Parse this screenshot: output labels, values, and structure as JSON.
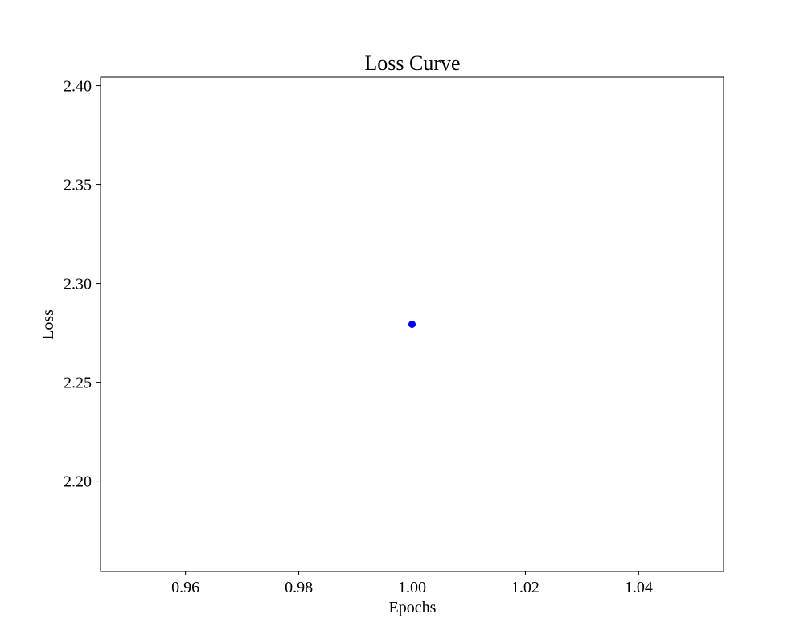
{
  "chart_data": {
    "type": "scatter",
    "title": "Loss Curve",
    "xlabel": "Epochs",
    "ylabel": "Loss",
    "xlim": [
      0.945,
      1.055
    ],
    "ylim": [
      2.1543,
      2.4043
    ],
    "xticks": [
      0.96,
      0.98,
      1.0,
      1.02,
      1.04
    ],
    "xtick_labels": [
      "0.96",
      "0.98",
      "1.00",
      "1.02",
      "1.04"
    ],
    "yticks": [
      2.2,
      2.25,
      2.3,
      2.35,
      2.4
    ],
    "ytick_labels": [
      "2.20",
      "2.25",
      "2.30",
      "2.35",
      "2.40"
    ],
    "grid": false,
    "series": [
      {
        "color": "#0000ff",
        "points": [
          {
            "x": 1.0,
            "y": 2.2793
          }
        ]
      }
    ]
  }
}
